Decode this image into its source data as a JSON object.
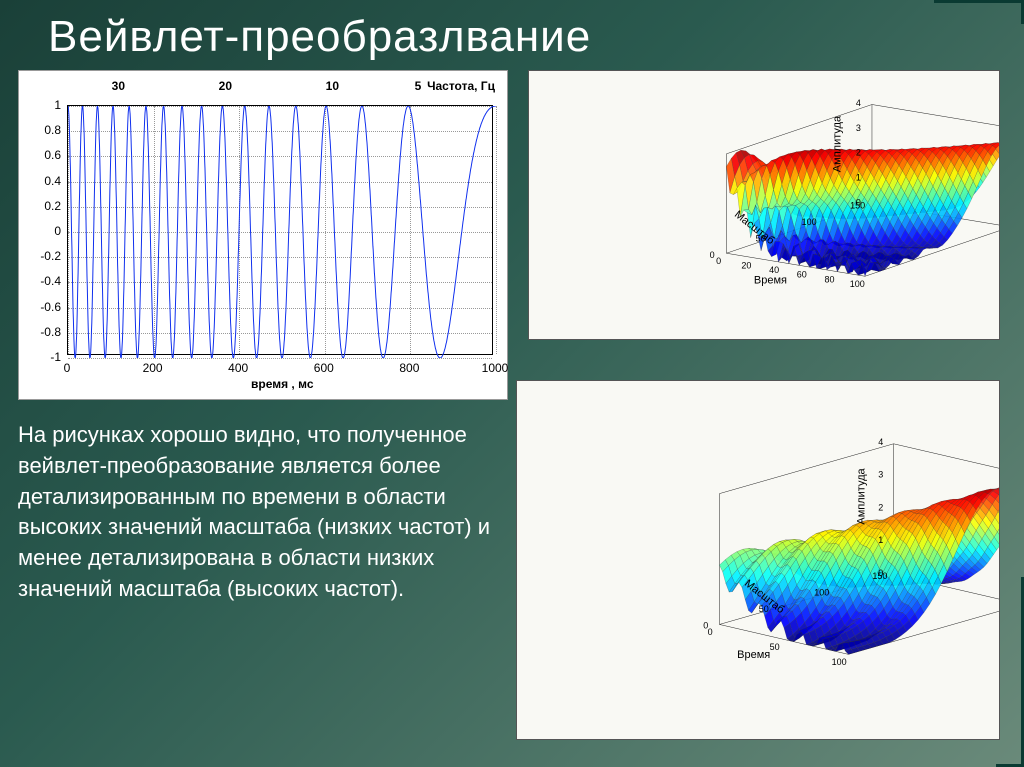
{
  "title": "Вейвлет-преобразлвание",
  "description": "На рисунках хорошо видно, что полученное вейвлет-преобразование является более детализированным по времени в области высоких значений масштаба (низких частот) и менее детализирована в области низких значений масштаба (высоких частот).",
  "waveform": {
    "type": "line",
    "xlabel": "время , мс",
    "top_axis_label": "Частота, Гц",
    "xlim": [
      0,
      1000
    ],
    "ylim": [
      -1,
      1
    ],
    "xticks": [
      0,
      200,
      400,
      600,
      800,
      1000
    ],
    "yticks": [
      -1,
      -0.8,
      -0.6,
      -0.4,
      -0.2,
      0,
      0.2,
      0.4,
      0.6,
      0.8,
      1
    ],
    "top_ticks": [
      {
        "pos": 120,
        "label": "30"
      },
      {
        "pos": 370,
        "label": "20"
      },
      {
        "pos": 620,
        "label": "10"
      },
      {
        "pos": 820,
        "label": "5"
      }
    ],
    "line_color": "#1030ee",
    "background_color": "#ffffff",
    "grid_color": "#aaaaaa",
    "chirp_freq_start_hz": 30,
    "chirp_freq_end_hz": 2,
    "amplitude": 1.0
  },
  "surface1": {
    "type": "surface3d",
    "xlabel": "Время",
    "ylabel": "Масштаб",
    "zlabel": "Амплитуда",
    "xticks": [
      0,
      20,
      40,
      60,
      80,
      100
    ],
    "yticks": [
      0,
      50,
      100,
      150
    ],
    "zticks": [
      0,
      1,
      2,
      3,
      4
    ],
    "xlim": [
      0,
      100
    ],
    "ylim": [
      0,
      150
    ],
    "zlim": [
      0,
      4
    ],
    "colormap": "jet",
    "colors_sampled": [
      "#0020aa",
      "#0090ff",
      "#00d0d0",
      "#30ff60",
      "#ffff00",
      "#ff8000",
      "#ff1010",
      "#900040"
    ],
    "background_color": "#f9f9f4",
    "mesh_line_color": "#333333",
    "view_azimuth": -35,
    "view_elevation": 22
  },
  "surface2": {
    "type": "surface3d",
    "xlabel": "Время",
    "ylabel": "Масштаб",
    "zlabel": "Амплитуда",
    "xticks": [
      0,
      50,
      100
    ],
    "yticks": [
      0,
      50,
      100,
      150
    ],
    "zticks": [
      0,
      1,
      2,
      3,
      4
    ],
    "xlim": [
      0,
      100
    ],
    "ylim": [
      0,
      150
    ],
    "zlim": [
      0,
      4
    ],
    "colormap": "jet",
    "colors_sampled": [
      "#0020aa",
      "#0090ff",
      "#00d0d0",
      "#30ff60",
      "#ffff00",
      "#ff8000",
      "#ff1010",
      "#900040"
    ],
    "background_color": "#f9f9f4",
    "mesh_line_color": "#333333",
    "view_azimuth": -42,
    "view_elevation": 24
  }
}
